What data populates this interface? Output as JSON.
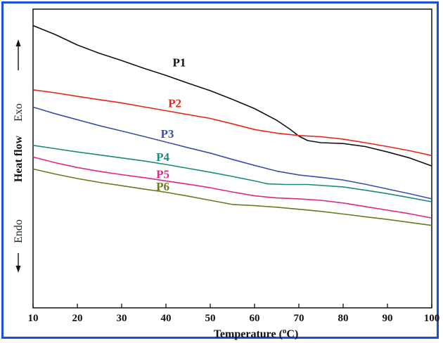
{
  "chart_data": {
    "type": "line",
    "xlabel_main": "Temperature (",
    "xlabel_sup": "o",
    "xlabel_tail": "C)",
    "ylabel": {
      "endo": "Endo",
      "center": "Heat flow",
      "exo": "Exo"
    },
    "xlim": [
      10,
      100
    ],
    "xticks": [
      10,
      20,
      30,
      40,
      50,
      60,
      70,
      80,
      90,
      100
    ],
    "grid": false,
    "series": [
      {
        "name": "P1",
        "color": "#111111",
        "points": [
          [
            10,
            0.945
          ],
          [
            15,
            0.915
          ],
          [
            20,
            0.88
          ],
          [
            25,
            0.852
          ],
          [
            30,
            0.828
          ],
          [
            35,
            0.802
          ],
          [
            40,
            0.778
          ],
          [
            45,
            0.752
          ],
          [
            50,
            0.727
          ],
          [
            55,
            0.698
          ],
          [
            60,
            0.667
          ],
          [
            65,
            0.628
          ],
          [
            68,
            0.598
          ],
          [
            70,
            0.575
          ],
          [
            72,
            0.56
          ],
          [
            75,
            0.553
          ],
          [
            80,
            0.55
          ],
          [
            85,
            0.54
          ],
          [
            90,
            0.522
          ],
          [
            95,
            0.502
          ],
          [
            100,
            0.475
          ]
        ]
      },
      {
        "name": "P2",
        "color": "#e8241c",
        "points": [
          [
            10,
            0.73
          ],
          [
            15,
            0.72
          ],
          [
            20,
            0.708
          ],
          [
            25,
            0.697
          ],
          [
            30,
            0.686
          ],
          [
            35,
            0.673
          ],
          [
            40,
            0.66
          ],
          [
            45,
            0.647
          ],
          [
            50,
            0.634
          ],
          [
            55,
            0.616
          ],
          [
            60,
            0.597
          ],
          [
            65,
            0.585
          ],
          [
            70,
            0.577
          ],
          [
            75,
            0.573
          ],
          [
            80,
            0.565
          ],
          [
            85,
            0.553
          ],
          [
            90,
            0.54
          ],
          [
            95,
            0.526
          ],
          [
            100,
            0.51
          ]
        ]
      },
      {
        "name": "P3",
        "color": "#3a4fb0",
        "points": [
          [
            10,
            0.672
          ],
          [
            15,
            0.65
          ],
          [
            20,
            0.63
          ],
          [
            25,
            0.61
          ],
          [
            30,
            0.592
          ],
          [
            35,
            0.574
          ],
          [
            40,
            0.555
          ],
          [
            45,
            0.536
          ],
          [
            50,
            0.518
          ],
          [
            55,
            0.497
          ],
          [
            60,
            0.477
          ],
          [
            65,
            0.458
          ],
          [
            70,
            0.445
          ],
          [
            75,
            0.437
          ],
          [
            80,
            0.428
          ],
          [
            85,
            0.414
          ],
          [
            90,
            0.398
          ],
          [
            95,
            0.382
          ],
          [
            100,
            0.365
          ]
        ]
      },
      {
        "name": "P4",
        "color": "#1a8a7a",
        "points": [
          [
            10,
            0.544
          ],
          [
            15,
            0.533
          ],
          [
            20,
            0.522
          ],
          [
            25,
            0.512
          ],
          [
            30,
            0.502
          ],
          [
            35,
            0.492
          ],
          [
            40,
            0.48
          ],
          [
            45,
            0.467
          ],
          [
            50,
            0.454
          ],
          [
            55,
            0.44
          ],
          [
            60,
            0.425
          ],
          [
            63,
            0.415
          ],
          [
            67,
            0.413
          ],
          [
            72,
            0.413
          ],
          [
            80,
            0.405
          ],
          [
            85,
            0.394
          ],
          [
            90,
            0.382
          ],
          [
            95,
            0.369
          ],
          [
            100,
            0.355
          ]
        ]
      },
      {
        "name": "P5",
        "color": "#e0287f",
        "points": [
          [
            10,
            0.505
          ],
          [
            15,
            0.486
          ],
          [
            20,
            0.47
          ],
          [
            25,
            0.457
          ],
          [
            30,
            0.446
          ],
          [
            35,
            0.436
          ],
          [
            40,
            0.425
          ],
          [
            45,
            0.414
          ],
          [
            50,
            0.402
          ],
          [
            55,
            0.388
          ],
          [
            60,
            0.375
          ],
          [
            65,
            0.368
          ],
          [
            70,
            0.365
          ],
          [
            75,
            0.36
          ],
          [
            80,
            0.351
          ],
          [
            85,
            0.339
          ],
          [
            90,
            0.327
          ],
          [
            95,
            0.315
          ],
          [
            100,
            0.301
          ]
        ]
      },
      {
        "name": "P6",
        "color": "#6b7a1e",
        "points": [
          [
            10,
            0.465
          ],
          [
            15,
            0.448
          ],
          [
            20,
            0.433
          ],
          [
            25,
            0.42
          ],
          [
            30,
            0.409
          ],
          [
            35,
            0.398
          ],
          [
            40,
            0.387
          ],
          [
            45,
            0.374
          ],
          [
            50,
            0.36
          ],
          [
            55,
            0.346
          ],
          [
            60,
            0.342
          ],
          [
            65,
            0.337
          ],
          [
            70,
            0.33
          ],
          [
            75,
            0.323
          ],
          [
            80,
            0.314
          ],
          [
            85,
            0.305
          ],
          [
            90,
            0.296
          ],
          [
            95,
            0.286
          ],
          [
            100,
            0.276
          ]
        ]
      }
    ],
    "labels": [
      {
        "text": "P1",
        "x": 41.5,
        "y": 0.808,
        "color": "#111111"
      },
      {
        "text": "P2",
        "x": 40.5,
        "y": 0.672,
        "color": "#e8241c"
      },
      {
        "text": "P3",
        "x": 38.8,
        "y": 0.57,
        "color": "#3a4fb0"
      },
      {
        "text": "P4",
        "x": 37.8,
        "y": 0.492,
        "color": "#1a8a7a"
      },
      {
        "text": "P5",
        "x": 37.8,
        "y": 0.434,
        "color": "#e0287f"
      },
      {
        "text": "P6",
        "x": 37.8,
        "y": 0.393,
        "color": "#6b7a1e"
      }
    ]
  }
}
